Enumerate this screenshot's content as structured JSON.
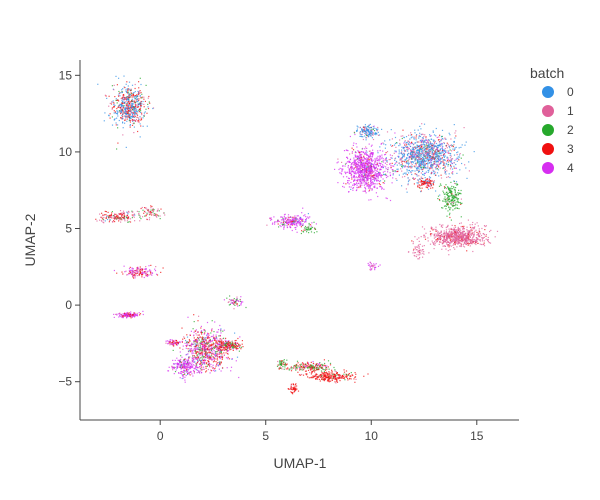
{
  "chart_data": {
    "type": "scatter",
    "title": "",
    "xlabel": "UMAP-1",
    "ylabel": "UMAP-2",
    "xlim": [
      -3.8,
      17.0
    ],
    "ylim": [
      -7.5,
      16.0
    ],
    "xticks": [
      0,
      5,
      10,
      15
    ],
    "yticks": [
      -5,
      0,
      5,
      10,
      15
    ],
    "grid": false,
    "legend": {
      "title": "batch",
      "placement": "top-right"
    },
    "series": [
      {
        "name": "0",
        "color": "#3391e6"
      },
      {
        "name": "1",
        "color": "#e0609a"
      },
      {
        "name": "2",
        "color": "#26a82c"
      },
      {
        "name": "3",
        "color": "#f01010"
      },
      {
        "name": "4",
        "color": "#d62ef0"
      }
    ],
    "clusters": [
      {
        "center": [
          -1.5,
          13.0
        ],
        "spread": [
          0.7,
          1.2
        ],
        "weights": [
          0.45,
          0.15,
          0.08,
          0.32,
          0.0
        ],
        "density": 1200
      },
      {
        "center": [
          -2.0,
          5.8
        ],
        "spread": [
          0.8,
          0.3
        ],
        "weights": [
          0.05,
          0.45,
          0.1,
          0.4,
          0.0
        ],
        "density": 350
      },
      {
        "center": [
          -0.5,
          6.1
        ],
        "spread": [
          0.6,
          0.4
        ],
        "weights": [
          0.0,
          0.6,
          0.2,
          0.2,
          0.0
        ],
        "density": 150
      },
      {
        "center": [
          6.2,
          5.5
        ],
        "spread": [
          0.8,
          0.4
        ],
        "weights": [
          0.05,
          0.05,
          0.1,
          0.05,
          0.75
        ],
        "density": 450
      },
      {
        "center": [
          7.0,
          5.0
        ],
        "spread": [
          0.3,
          0.2
        ],
        "weights": [
          0.0,
          0.1,
          0.8,
          0.1,
          0.0
        ],
        "density": 80
      },
      {
        "center": [
          9.7,
          8.9
        ],
        "spread": [
          0.9,
          1.2
        ],
        "weights": [
          0.02,
          0.05,
          0.03,
          0.05,
          0.85
        ],
        "density": 1800
      },
      {
        "center": [
          12.5,
          9.8
        ],
        "spread": [
          1.4,
          1.3
        ],
        "weights": [
          0.55,
          0.25,
          0.05,
          0.1,
          0.05
        ],
        "density": 2400
      },
      {
        "center": [
          9.8,
          11.4
        ],
        "spread": [
          0.5,
          0.4
        ],
        "weights": [
          0.7,
          0.15,
          0.05,
          0.05,
          0.05
        ],
        "density": 300
      },
      {
        "center": [
          12.6,
          8.0
        ],
        "spread": [
          0.4,
          0.3
        ],
        "weights": [
          0.05,
          0.2,
          0.05,
          0.7,
          0.0
        ],
        "density": 200
      },
      {
        "center": [
          13.8,
          7.0
        ],
        "spread": [
          0.4,
          0.8
        ],
        "weights": [
          0.0,
          0.05,
          0.9,
          0.05,
          0.0
        ],
        "density": 400
      },
      {
        "center": [
          14.1,
          4.5
        ],
        "spread": [
          1.2,
          0.6
        ],
        "weights": [
          0.0,
          0.9,
          0.0,
          0.1,
          0.0
        ],
        "density": 1500
      },
      {
        "center": [
          12.2,
          3.6
        ],
        "spread": [
          0.3,
          0.5
        ],
        "weights": [
          0.0,
          0.9,
          0.0,
          0.1,
          0.0
        ],
        "density": 100
      },
      {
        "center": [
          10.0,
          2.6
        ],
        "spread": [
          0.3,
          0.2
        ],
        "weights": [
          0.0,
          0.3,
          0.0,
          0.0,
          0.7
        ],
        "density": 60
      },
      {
        "center": [
          2.2,
          -2.8
        ],
        "spread": [
          1.0,
          1.2
        ],
        "weights": [
          0.05,
          0.15,
          0.15,
          0.3,
          0.35
        ],
        "density": 1400
      },
      {
        "center": [
          1.2,
          -4.0
        ],
        "spread": [
          0.6,
          0.6
        ],
        "weights": [
          0.05,
          0.05,
          0.05,
          0.05,
          0.8
        ],
        "density": 500
      },
      {
        "center": [
          3.2,
          -2.6
        ],
        "spread": [
          0.6,
          0.3
        ],
        "weights": [
          0.0,
          0.1,
          0.2,
          0.6,
          0.1
        ],
        "density": 400
      },
      {
        "center": [
          -1.0,
          2.2
        ],
        "spread": [
          0.7,
          0.3
        ],
        "weights": [
          0.0,
          0.2,
          0.0,
          0.3,
          0.5
        ],
        "density": 300
      },
      {
        "center": [
          -1.5,
          -0.6
        ],
        "spread": [
          0.5,
          0.15
        ],
        "weights": [
          0.0,
          0.1,
          0.0,
          0.3,
          0.6
        ],
        "density": 250
      },
      {
        "center": [
          3.5,
          0.3
        ],
        "spread": [
          0.4,
          0.3
        ],
        "weights": [
          0.0,
          0.2,
          0.3,
          0.2,
          0.3
        ],
        "density": 120
      },
      {
        "center": [
          0.6,
          -2.4
        ],
        "spread": [
          0.3,
          0.2
        ],
        "weights": [
          0.0,
          0.2,
          0.0,
          0.3,
          0.5
        ],
        "density": 120
      },
      {
        "center": [
          7.0,
          -4.0
        ],
        "spread": [
          1.0,
          0.3
        ],
        "weights": [
          0.0,
          0.1,
          0.35,
          0.45,
          0.1
        ],
        "density": 400
      },
      {
        "center": [
          8.0,
          -4.6
        ],
        "spread": [
          1.1,
          0.3
        ],
        "weights": [
          0.0,
          0.05,
          0.05,
          0.9,
          0.0
        ],
        "density": 500
      },
      {
        "center": [
          6.3,
          -5.4
        ],
        "spread": [
          0.2,
          0.3
        ],
        "weights": [
          0.0,
          0.05,
          0.0,
          0.95,
          0.0
        ],
        "density": 100
      },
      {
        "center": [
          5.7,
          -3.8
        ],
        "spread": [
          0.25,
          0.25
        ],
        "weights": [
          0.0,
          0.1,
          0.8,
          0.1,
          0.0
        ],
        "density": 80
      }
    ]
  }
}
